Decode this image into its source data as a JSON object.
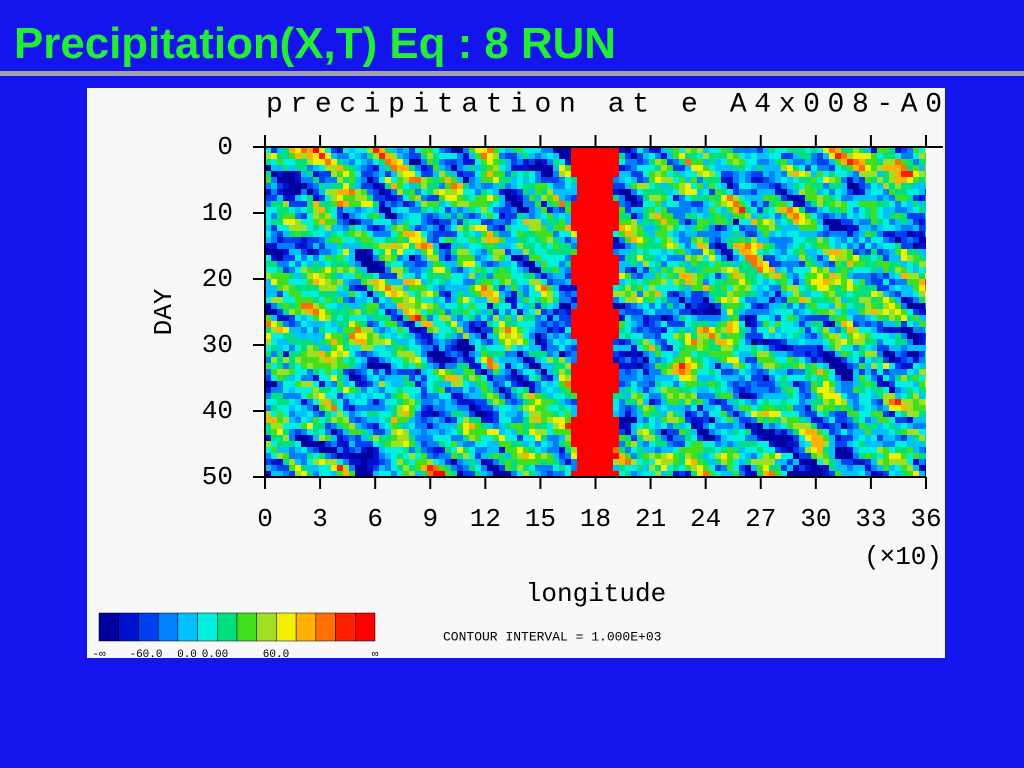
{
  "header": {
    "title": "Precipitation(X,T) Eq  : 8 RUN"
  },
  "chart_data": {
    "type": "heatmap",
    "title": "precipitation at e A4x008-A0",
    "x_label": "longitude",
    "x_multiplier": "(×10)",
    "y_label": "DAY",
    "xlim": [
      0,
      36
    ],
    "xticks": [
      0,
      3,
      6,
      9,
      12,
      15,
      18,
      21,
      24,
      27,
      30,
      33,
      36
    ],
    "ylim": [
      0,
      50
    ],
    "yticks": [
      0,
      10,
      20,
      30,
      40,
      50
    ],
    "colorbar_colors": [
      "#0000a0",
      "#0010d0",
      "#0040f0",
      "#0080ff",
      "#00c0ff",
      "#00f0e0",
      "#00e080",
      "#40e020",
      "#a0e020",
      "#f0f000",
      "#ffb000",
      "#ff7000",
      "#ff2000",
      "#ff0000"
    ],
    "colorbar_labels": [
      "-∞",
      "-60.0",
      "0.0",
      "0.00",
      "60.0",
      "∞"
    ],
    "note": "CONTOUR INTERVAL = 1.000E+03"
  }
}
